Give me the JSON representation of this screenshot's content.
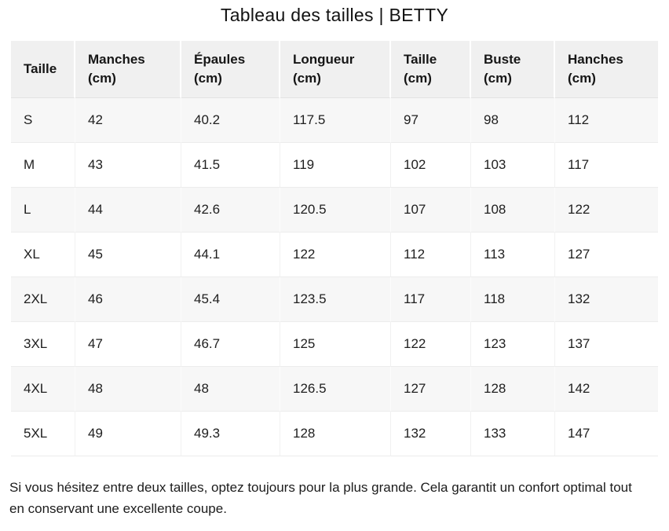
{
  "title": "Tableau des tailles | BETTY",
  "table": {
    "columns": [
      {
        "label": "Taille",
        "unit": ""
      },
      {
        "label": "Manches",
        "unit": "(cm)"
      },
      {
        "label": "Épaules",
        "unit": "(cm)"
      },
      {
        "label": "Longueur",
        "unit": "(cm)"
      },
      {
        "label": "Taille",
        "unit": "(cm)"
      },
      {
        "label": "Buste",
        "unit": "(cm)"
      },
      {
        "label": "Hanches",
        "unit": "(cm)"
      }
    ],
    "rows": [
      [
        "S",
        "42",
        "40.2",
        "117.5",
        "97",
        "98",
        "112"
      ],
      [
        "M",
        "43",
        "41.5",
        "119",
        "102",
        "103",
        "117"
      ],
      [
        "L",
        "44",
        "42.6",
        "120.5",
        "107",
        "108",
        "122"
      ],
      [
        "XL",
        "45",
        "44.1",
        "122",
        "112",
        "113",
        "127"
      ],
      [
        "2XL",
        "46",
        "45.4",
        "123.5",
        "117",
        "118",
        "132"
      ],
      [
        "3XL",
        "47",
        "46.7",
        "125",
        "122",
        "123",
        "137"
      ],
      [
        "4XL",
        "48",
        "48",
        "126.5",
        "127",
        "128",
        "142"
      ],
      [
        "5XL",
        "49",
        "49.3",
        "128",
        "132",
        "133",
        "147"
      ]
    ]
  },
  "note": "Si vous hésitez entre deux tailles, optez toujours pour la plus grande. Cela garantit un confort optimal tout en conservant une excellente coupe.",
  "colors": {
    "header_bg": "#f0f0f0",
    "row_alt_bg": "#f7f7f7",
    "row_bg": "#ffffff",
    "border": "#ececec",
    "text": "#1f1f1f"
  }
}
